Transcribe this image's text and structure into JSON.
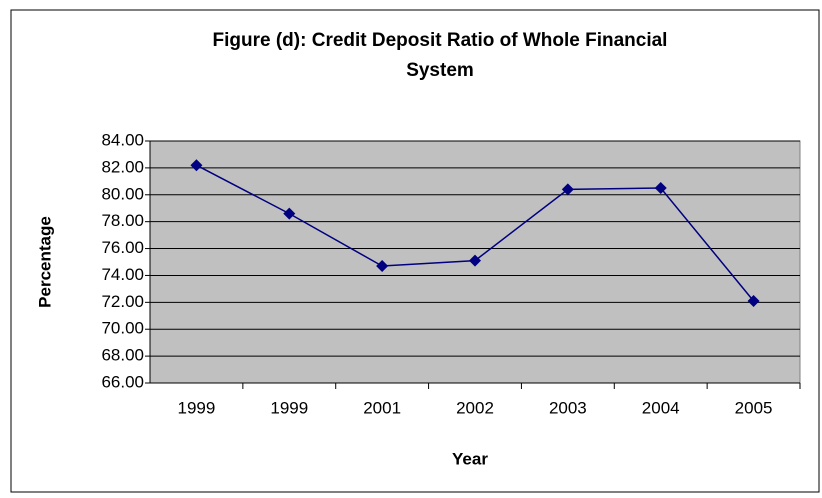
{
  "chart_data": {
    "type": "line",
    "title": "Figure (d): Credit Deposit Ratio of Whole Financial System",
    "x_label": "Year",
    "y_label": "Percentage",
    "categories": [
      "1999",
      "1999",
      "2001",
      "2002",
      "2003",
      "2004",
      "2005"
    ],
    "series": [
      {
        "name": "Credit Deposit Ratio",
        "color": "#000080",
        "values": [
          82.2,
          78.6,
          74.7,
          75.1,
          80.4,
          80.5,
          72.1
        ]
      }
    ],
    "ylim": [
      66,
      84
    ],
    "yticks": [
      {
        "value": 66,
        "label": "66.00"
      },
      {
        "value": 68,
        "label": "68.00"
      },
      {
        "value": 70,
        "label": "70.00"
      },
      {
        "value": 72,
        "label": "72.00"
      },
      {
        "value": 74,
        "label": "74.00"
      },
      {
        "value": 76,
        "label": "76.00"
      },
      {
        "value": 78,
        "label": "78.00"
      },
      {
        "value": 80,
        "label": "80.00"
      },
      {
        "value": 82,
        "label": "82.00"
      },
      {
        "value": 84,
        "label": "84.00"
      }
    ],
    "grid": true,
    "plot_background": "#c0c0c0"
  }
}
